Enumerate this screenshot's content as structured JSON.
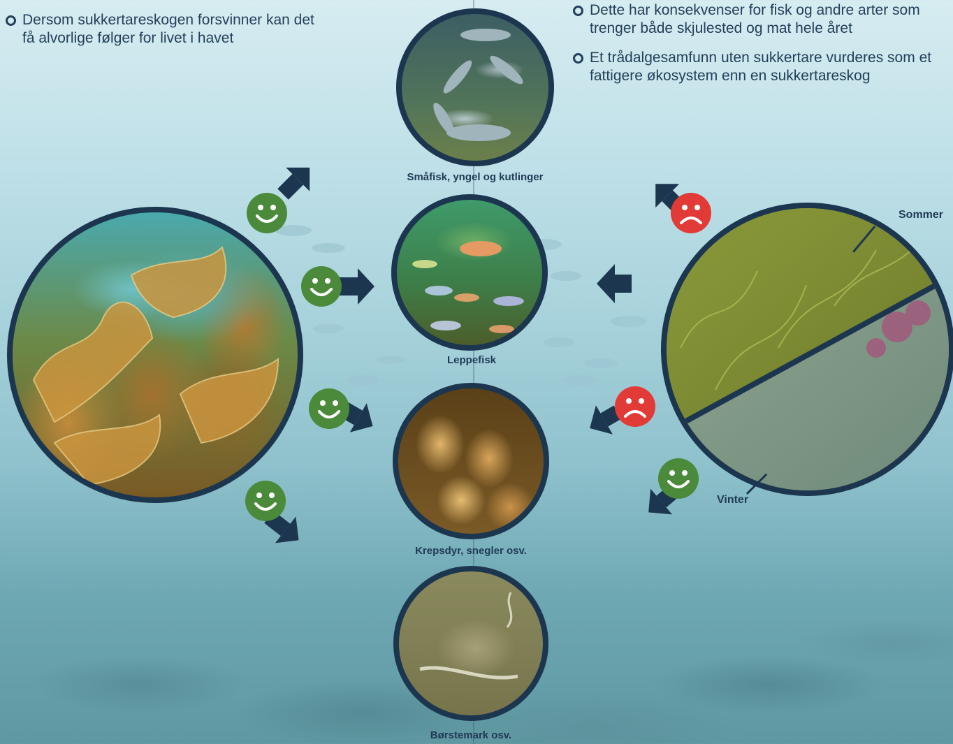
{
  "left_bullets": [
    "Dersom sukkertareskogen forsvinner kan det få alvorlige følger for livet i havet"
  ],
  "right_bullets": [
    "Dette har konsekvenser for fisk og andre arter som trenger både skjulested og mat hele året",
    "Et trådalgesamfunn uten sukkertare vurderes som et fattigere økosystem enn en sukkertareskog"
  ],
  "nodes": {
    "smallfish": "Småfisk, yngel og kutlinger",
    "wrasse": "Leppefisk",
    "crustaceans": "Krepsdyr, snegler osv.",
    "worms": "Børstemark osv."
  },
  "filament": {
    "summer": "Sommer",
    "winter": "Vinter"
  },
  "effects": {
    "kelp_to_smallfish": "happy-face-icon",
    "kelp_to_wrasse": "happy-face-icon",
    "kelp_to_crustaceans": "happy-face-icon",
    "kelp_to_worms": "happy-face-icon",
    "filament_to_smallfish": "sad-face-icon",
    "filament_to_wrasse": "none",
    "filament_to_crustaceans": "sad-face-icon",
    "filament_to_worms": "happy-face-icon"
  },
  "colors": {
    "positive": "#4a8a3a",
    "negative": "#e23a36",
    "arrow": "#1c3650"
  }
}
